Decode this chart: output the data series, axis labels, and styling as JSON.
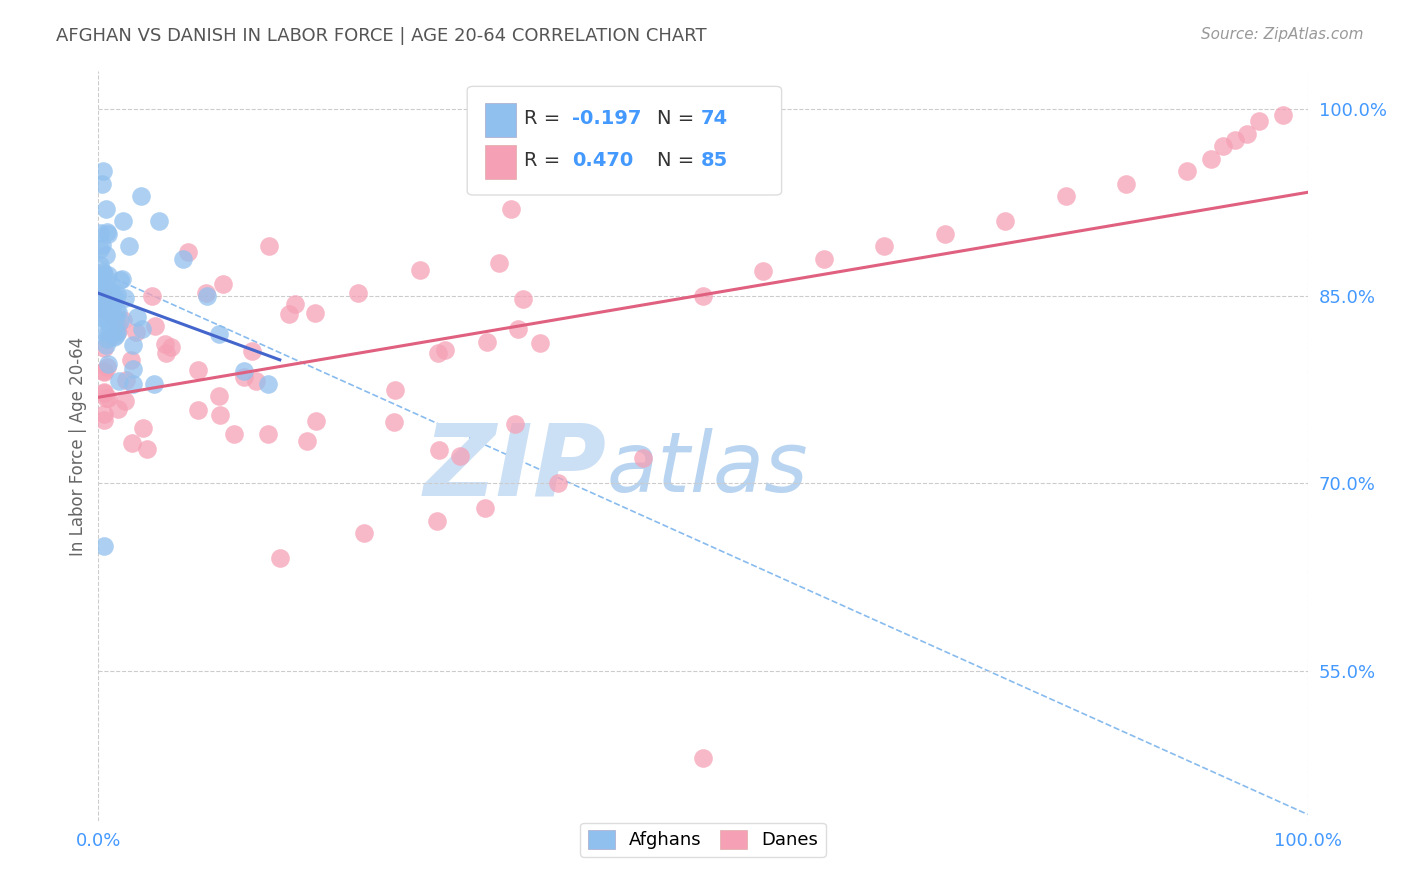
{
  "title": "AFGHAN VS DANISH IN LABOR FORCE | AGE 20-64 CORRELATION CHART",
  "source_text": "Source: ZipAtlas.com",
  "ylabel": "In Labor Force | Age 20-64",
  "xlim": [
    0.0,
    1.0
  ],
  "ylim": [
    0.43,
    1.03
  ],
  "afghan_color": "#90c0ee",
  "dane_color": "#f5a0b5",
  "trend_afghan_color": "#4466cc",
  "trend_dane_color": "#e06080",
  "dashed_color": "#88bbee",
  "grid_color": "#cccccc",
  "grid_style": "--",
  "background_color": "#ffffff",
  "title_color": "#555555",
  "axis_label_color": "#4499ff",
  "watermark_color": "#cce0f5",
  "legend_r1": "R = -0.197",
  "legend_n1": "N = 74",
  "legend_r2": "R = 0.470",
  "legend_n2": "N = 85",
  "ytick_positions": [
    0.55,
    0.7,
    0.85,
    1.0
  ],
  "ytick_labels": [
    "55.0%",
    "70.0%",
    "85.0%",
    "100.0%"
  ],
  "xtick_positions": [
    0.0,
    1.0
  ],
  "xtick_labels": [
    "0.0%",
    "100.0%"
  ]
}
